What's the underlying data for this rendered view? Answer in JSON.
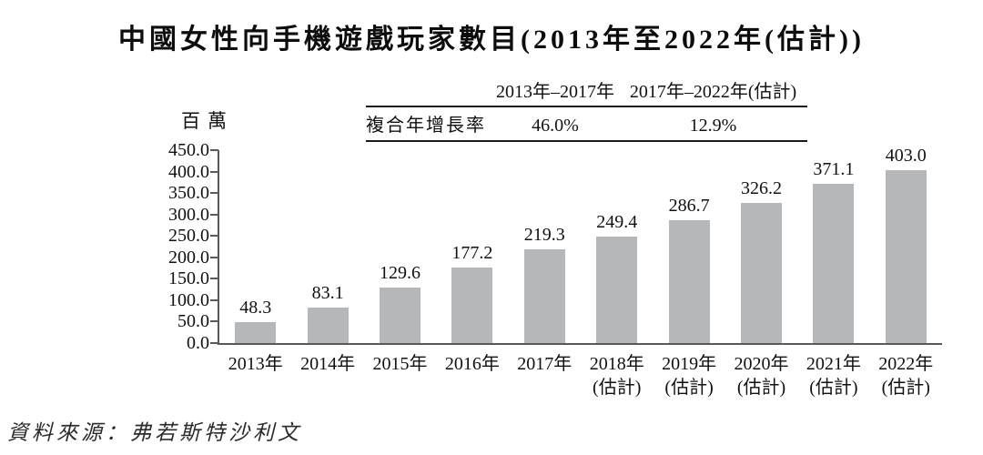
{
  "title": "中國女性向手機遊戲玩家數目(2013年至2022年(估計))",
  "cagr_table": {
    "row_label": "複合年增長率",
    "columns": [
      {
        "period": "2013年–2017年",
        "value": "46.0%"
      },
      {
        "period": "2017年–2022年(估計)",
        "value": "12.9%"
      }
    ]
  },
  "chart_data": {
    "type": "bar",
    "title": "中國女性向手機遊戲玩家數目(2013年至2022年(估計))",
    "ylabel": "百萬",
    "xlabel": "",
    "ylim": [
      0,
      450
    ],
    "ytick_step": 50,
    "grid": false,
    "legend": "none",
    "bar_color": "#b5b7b9",
    "categories": [
      {
        "label": "2013年",
        "sub": ""
      },
      {
        "label": "2014年",
        "sub": ""
      },
      {
        "label": "2015年",
        "sub": ""
      },
      {
        "label": "2016年",
        "sub": ""
      },
      {
        "label": "2017年",
        "sub": ""
      },
      {
        "label": "2018年",
        "sub": "(估計)"
      },
      {
        "label": "2019年",
        "sub": "(估計)"
      },
      {
        "label": "2020年",
        "sub": "(估計)"
      },
      {
        "label": "2021年",
        "sub": "(估計)"
      },
      {
        "label": "2022年",
        "sub": "(估計)"
      }
    ],
    "values": [
      48.3,
      83.1,
      129.6,
      177.2,
      219.3,
      249.4,
      286.7,
      326.2,
      371.1,
      403.0
    ]
  },
  "source": "資料來源：弗若斯特沙利文"
}
